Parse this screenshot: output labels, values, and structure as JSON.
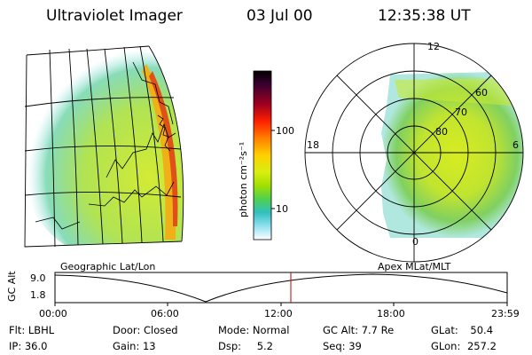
{
  "header": {
    "instrument": "Ultraviolet Imager",
    "date": "03 Jul 00",
    "time": "12:35:38 UT"
  },
  "colorbar": {
    "label": "photon cm⁻²s⁻¹",
    "ticks": [
      "100",
      "10"
    ],
    "colors": [
      "#000000",
      "#3a0030",
      "#a00020",
      "#ff2000",
      "#ff8000",
      "#ffd000",
      "#e8f000",
      "#a0e000",
      "#50d050",
      "#30c0c0",
      "#80e0f0",
      "#ffffff"
    ]
  },
  "geo_panel": {
    "label": "Geographic Lat/Lon"
  },
  "polar_panel": {
    "label": "Apex MLat/MLT",
    "mlt_labels": {
      "top": "12",
      "left": "18",
      "right": "6",
      "bottom": "0"
    },
    "lat_labels": [
      "60",
      "70",
      "80"
    ]
  },
  "altitude_plot": {
    "ylabel": "GC Alt",
    "yticks": [
      "9.0",
      "1.8"
    ],
    "xticks": [
      "00:00",
      "06:00",
      "12:00",
      "18:00",
      "23:59"
    ],
    "marker_color": "#c00000"
  },
  "status": {
    "flt": {
      "label": "Flt:",
      "value": "LBHL"
    },
    "ip": {
      "label": "IP:",
      "value": "36.0"
    },
    "door": {
      "label": "Door:",
      "value": "Closed"
    },
    "gain": {
      "label": "Gain:",
      "value": "13"
    },
    "mode": {
      "label": "Mode:",
      "value": "Normal"
    },
    "dsp": {
      "label": "Dsp:",
      "value": "5.2"
    },
    "gcalt": {
      "label": "GC Alt:",
      "value": "7.7 Re"
    },
    "seq": {
      "label": "Seq:",
      "value": "39"
    },
    "glat": {
      "label": "GLat:",
      "value": "50.4"
    },
    "glon": {
      "label": "GLon:",
      "value": "257.2"
    }
  }
}
